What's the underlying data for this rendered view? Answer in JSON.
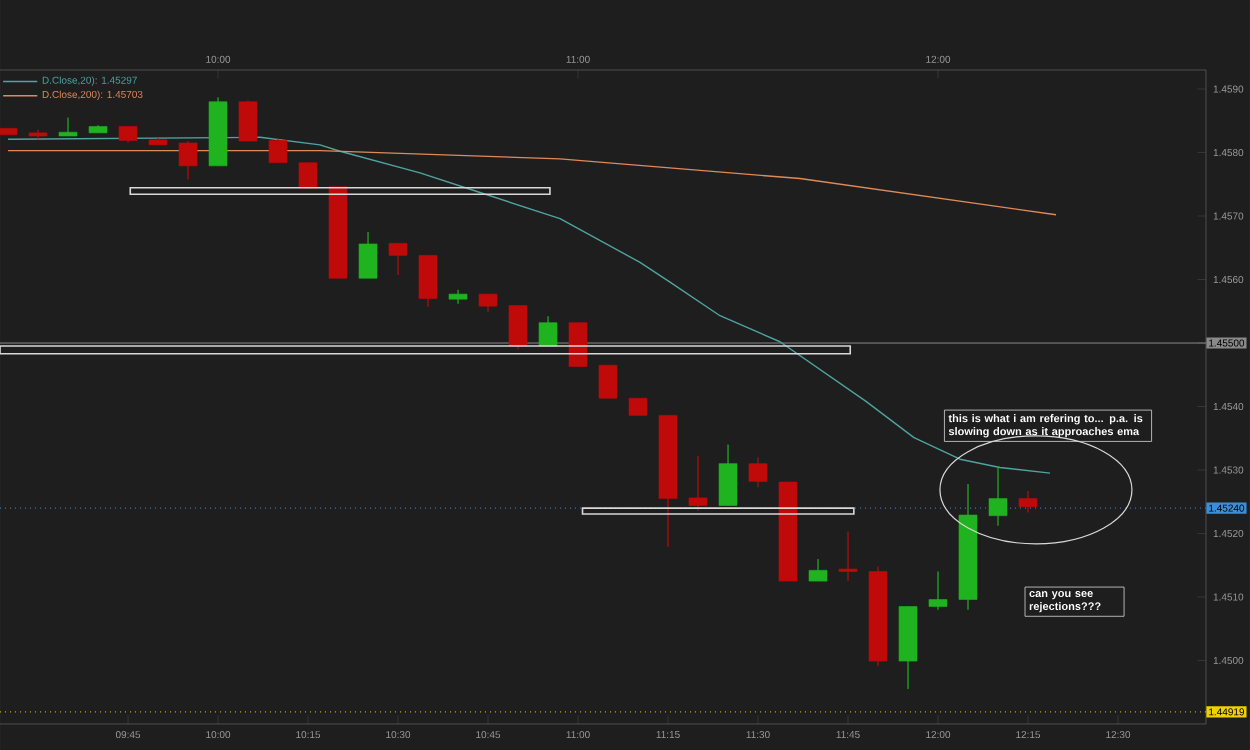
{
  "chart_data": {
    "type": "candlestick",
    "x": [
      9.4167,
      9.5,
      9.5833,
      9.6667,
      9.75,
      9.8333,
      9.9167,
      10,
      10.0833,
      10.1667,
      10.25,
      10.3333,
      10.4167,
      10.5,
      10.5833,
      10.6667,
      10.75,
      10.8333,
      10.9167,
      11,
      11.0833,
      11.1667,
      11.25,
      11.3333,
      11.4167,
      11.5,
      11.5833,
      11.6667,
      11.75,
      11.8333,
      11.9167,
      12,
      12.0833,
      12.1667,
      12.25
    ],
    "ohlc": [
      [
        1.45838,
        1.45838,
        1.45828,
        1.45828
      ],
      [
        1.45831,
        1.45836,
        1.45821,
        1.45826
      ],
      [
        1.45826,
        1.45855,
        1.45826,
        1.45832
      ],
      [
        1.45831,
        1.45843,
        1.45831,
        1.45841
      ],
      [
        1.45841,
        1.45841,
        1.45816,
        1.45819
      ],
      [
        1.4582,
        1.45823,
        1.45812,
        1.45812
      ],
      [
        1.45815,
        1.45818,
        1.45758,
        1.45779
      ],
      [
        1.45779,
        1.45887,
        1.45779,
        1.4588
      ],
      [
        1.4588,
        1.45882,
        1.45818,
        1.45818
      ],
      [
        1.45819,
        1.45822,
        1.45784,
        1.45784
      ],
      [
        1.45784,
        1.45784,
        1.45744,
        1.45744
      ],
      [
        1.45746,
        1.45746,
        1.45602,
        1.45602
      ],
      [
        1.45602,
        1.45675,
        1.45602,
        1.45656
      ],
      [
        1.45657,
        1.45657,
        1.45607,
        1.45638
      ],
      [
        1.45638,
        1.45638,
        1.45557,
        1.4557
      ],
      [
        1.45569,
        1.45584,
        1.45562,
        1.45577
      ],
      [
        1.45577,
        1.45577,
        1.45549,
        1.45558
      ],
      [
        1.45559,
        1.45559,
        1.4549,
        1.45495
      ],
      [
        1.45495,
        1.45542,
        1.45495,
        1.45532
      ],
      [
        1.45532,
        1.45532,
        1.45463,
        1.45463
      ],
      [
        1.45465,
        1.45465,
        1.45413,
        1.45413
      ],
      [
        1.45413,
        1.45413,
        1.45386,
        1.45386
      ],
      [
        1.45386,
        1.45386,
        1.45179,
        1.45255
      ],
      [
        1.45256,
        1.45322,
        1.45236,
        1.45244
      ],
      [
        1.45244,
        1.4534,
        1.45244,
        1.4531
      ],
      [
        1.4531,
        1.4532,
        1.45273,
        1.45282
      ],
      [
        1.45281,
        1.45281,
        1.45125,
        1.45125
      ],
      [
        1.45125,
        1.4516,
        1.45125,
        1.45142
      ],
      [
        1.45144,
        1.45203,
        1.45125,
        1.4514
      ],
      [
        1.4514,
        1.45148,
        1.44991,
        1.44999
      ],
      [
        1.44999,
        1.45085,
        1.44955,
        1.45085
      ],
      [
        1.45085,
        1.4514,
        1.4508,
        1.45096
      ],
      [
        1.45096,
        1.45278,
        1.4508,
        1.45229
      ],
      [
        1.45228,
        1.45306,
        1.45212,
        1.45255
      ],
      [
        1.45255,
        1.45267,
        1.45233,
        1.45242
      ]
    ],
    "colors": [
      "#c00a0a",
      "#c00a0a",
      "#1fb31f",
      "#1fb31f",
      "#c00a0a",
      "#c00a0a",
      "#c00a0a",
      "#1fb31f",
      "#c00a0a",
      "#c00a0a",
      "#c00a0a",
      "#c00a0a",
      "#1fb31f",
      "#c00a0a",
      "#c00a0a",
      "#1fb31f",
      "#c00a0a",
      "#c00a0a",
      "#1fb31f",
      "#c00a0a",
      "#c00a0a",
      "#c00a0a",
      "#c00a0a",
      "#c00a0a",
      "#1fb31f",
      "#c00a0a",
      "#c00a0a",
      "#1fb31f",
      "#c00a0a",
      "#c00a0a",
      "#1fb31f",
      "#1fb31f",
      "#1fb31f",
      "#1fb31f",
      "#c00a0a"
    ],
    "series": [
      {
        "type": "line",
        "name": "D.Close,20): 1.45297",
        "color": "#4fa3a0",
        "x": [
          9.4167,
          10.1167,
          10.2833,
          10.3389,
          10.5611,
          10.7278,
          10.95,
          11.1722,
          11.2556,
          11.3944,
          11.5611,
          11.8,
          11.9333,
          12.0611,
          12.1722,
          12.3111
        ],
        "values": [
          1.45821,
          1.45824,
          1.45812,
          1.45802,
          1.45768,
          1.45737,
          1.45696,
          1.45627,
          1.45596,
          1.45543,
          1.45502,
          1.45408,
          1.45351,
          1.45317,
          1.45304,
          1.45295
        ]
      },
      {
        "type": "line",
        "name": "D.Close,200): 1.45703",
        "color": "#e08a5a",
        "x": [
          9.4167,
          10.2833,
          10.95,
          11.6167,
          12.3278
        ],
        "values": [
          1.45803,
          1.45803,
          1.4579,
          1.45759,
          1.45702
        ]
      }
    ],
    "legend": "top left",
    "annotations": [
      "this is what i am refering to... p.a. is slowing down as it approaches ema",
      "can you see rejections???"
    ],
    "ref_lines": [
      {
        "axis": "y",
        "value": 1.455,
        "label": "1.45500",
        "color": "#8a8a8a",
        "line_style": "solid"
      },
      {
        "axis": "y",
        "value": 1.4524,
        "label": "1.45240",
        "color": "#3a8fd8",
        "line_style": "dotted"
      },
      {
        "axis": "y",
        "value": 1.44919,
        "label": "1.44919",
        "color": "#f0d000",
        "line_style": "dotted"
      }
    ],
    "xlim": [
      9.3944,
      12.7444
    ],
    "xticks": [
      {
        "value": 9.75,
        "label": "09:45"
      },
      {
        "value": 10,
        "label": "10:00"
      },
      {
        "value": 10.25,
        "label": "10:15"
      },
      {
        "value": 10.5,
        "label": "10:30"
      },
      {
        "value": 10.75,
        "label": "10:45"
      },
      {
        "value": 11,
        "label": "11:00"
      },
      {
        "value": 11.25,
        "label": "11:15"
      },
      {
        "value": 11.5,
        "label": "11:30"
      },
      {
        "value": 11.75,
        "label": "11:45"
      },
      {
        "value": 12,
        "label": "12:00"
      },
      {
        "value": 12.25,
        "label": "12:15"
      },
      {
        "value": 12.5,
        "label": "12:30"
      }
    ],
    "x2lim": [
      9.3944,
      12.7444
    ],
    "x2ticks": [
      {
        "value": 10,
        "label": "10:00"
      },
      {
        "value": 11,
        "label": "11:00"
      },
      {
        "value": 12,
        "label": "12:00"
      }
    ],
    "ylim": [
      1.449,
      1.4593
    ],
    "yticks": [
      {
        "value": 1.45,
        "label": "1.4500"
      },
      {
        "value": 1.451,
        "label": "1.4510"
      },
      {
        "value": 1.452,
        "label": "1.4520"
      },
      {
        "value": 1.453,
        "label": "1.4530"
      },
      {
        "value": 1.454,
        "label": "1.4540"
      },
      {
        "value": 1.455,
        "label": null
      },
      {
        "value": 1.456,
        "label": "1.4560"
      },
      {
        "value": 1.457,
        "label": "1.4570"
      },
      {
        "value": 1.458,
        "label": "1.4580"
      },
      {
        "value": 1.459,
        "label": "1.4590"
      }
    ]
  }
}
